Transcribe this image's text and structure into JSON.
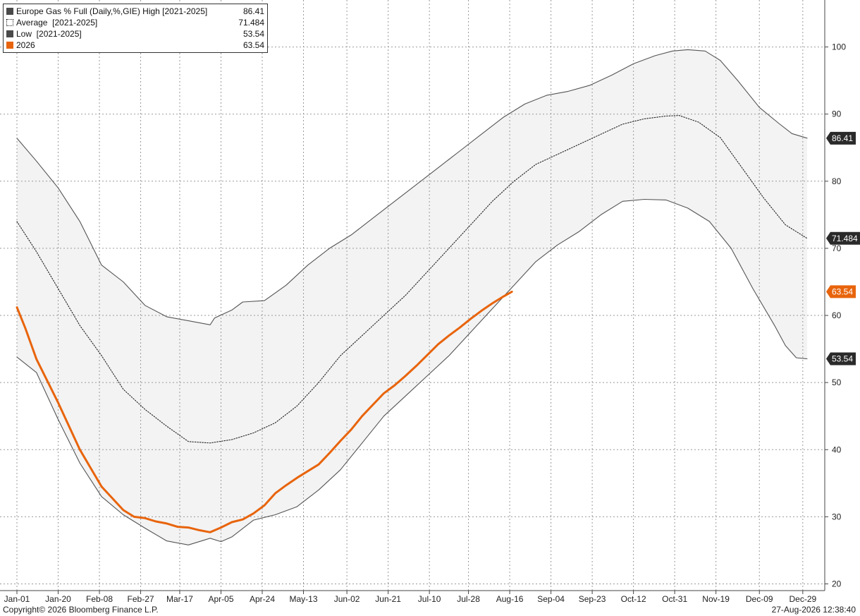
{
  "chart_data": {
    "type": "line",
    "legend_position": "top-left",
    "grid": true,
    "x_range": [
      1,
      365
    ],
    "ylim": [
      19,
      107
    ],
    "x_tick_labels": [
      {
        "day": 1,
        "label": "Jan-01"
      },
      {
        "day": 20,
        "label": "Jan-20"
      },
      {
        "day": 39,
        "label": "Feb-08"
      },
      {
        "day": 58,
        "label": "Feb-27"
      },
      {
        "day": 76,
        "label": "Mar-17"
      },
      {
        "day": 95,
        "label": "Apr-05"
      },
      {
        "day": 114,
        "label": "Apr-24"
      },
      {
        "day": 133,
        "label": "May-13"
      },
      {
        "day": 153,
        "label": "Jun-02"
      },
      {
        "day": 172,
        "label": "Jun-21"
      },
      {
        "day": 191,
        "label": "Jul-10"
      },
      {
        "day": 209,
        "label": "Jul-28"
      },
      {
        "day": 228,
        "label": "Aug-16"
      },
      {
        "day": 247,
        "label": "Sep-04"
      },
      {
        "day": 266,
        "label": "Sep-23"
      },
      {
        "day": 285,
        "label": "Oct-12"
      },
      {
        "day": 304,
        "label": "Oct-31"
      },
      {
        "day": 323,
        "label": "Nov-19"
      },
      {
        "day": 343,
        "label": "Dec-09"
      },
      {
        "day": 363,
        "label": "Dec-29"
      }
    ],
    "y_ticks": [
      20,
      30,
      40,
      50,
      60,
      70,
      80,
      90,
      100
    ],
    "series": [
      {
        "key": "high",
        "name": "Europe Gas % Full (Daily,%,GIE) High [2021-2025]",
        "last_value": "86.41",
        "color": "#555555",
        "style": "solid",
        "points": [
          [
            1,
            86.4
          ],
          [
            10,
            83
          ],
          [
            20,
            79
          ],
          [
            30,
            74
          ],
          [
            40,
            67.5
          ],
          [
            50,
            65
          ],
          [
            60,
            61.5
          ],
          [
            70,
            59.8
          ],
          [
            80,
            59.2
          ],
          [
            90,
            58.6
          ],
          [
            92,
            59.6
          ],
          [
            100,
            60.8
          ],
          [
            105,
            62
          ],
          [
            115,
            62.2
          ],
          [
            125,
            64.5
          ],
          [
            135,
            67.5
          ],
          [
            145,
            70
          ],
          [
            155,
            72
          ],
          [
            165,
            74.5
          ],
          [
            175,
            77
          ],
          [
            185,
            79.5
          ],
          [
            195,
            82
          ],
          [
            205,
            84.5
          ],
          [
            215,
            87
          ],
          [
            225,
            89.5
          ],
          [
            235,
            91.5
          ],
          [
            245,
            92.8
          ],
          [
            255,
            93.4
          ],
          [
            265,
            94.3
          ],
          [
            275,
            95.8
          ],
          [
            285,
            97.5
          ],
          [
            295,
            98.7
          ],
          [
            303,
            99.4
          ],
          [
            310,
            99.6
          ],
          [
            318,
            99.4
          ],
          [
            325,
            98
          ],
          [
            333,
            95
          ],
          [
            343,
            91
          ],
          [
            352,
            88.6
          ],
          [
            358,
            87.1
          ],
          [
            365,
            86.41
          ]
        ]
      },
      {
        "key": "average",
        "name": "Average  [2021-2025]",
        "last_value": "71.484",
        "color": "#222222",
        "style": "dotted",
        "points": [
          [
            1,
            74
          ],
          [
            10,
            69.5
          ],
          [
            20,
            64
          ],
          [
            30,
            58.5
          ],
          [
            40,
            54
          ],
          [
            50,
            49
          ],
          [
            60,
            46
          ],
          [
            70,
            43.5
          ],
          [
            80,
            41.2
          ],
          [
            90,
            41
          ],
          [
            100,
            41.5
          ],
          [
            110,
            42.5
          ],
          [
            120,
            44
          ],
          [
            130,
            46.5
          ],
          [
            140,
            50
          ],
          [
            150,
            54
          ],
          [
            160,
            57
          ],
          [
            170,
            60
          ],
          [
            180,
            63
          ],
          [
            190,
            66.5
          ],
          [
            200,
            70
          ],
          [
            210,
            73.5
          ],
          [
            220,
            77
          ],
          [
            230,
            80
          ],
          [
            240,
            82.5
          ],
          [
            250,
            84
          ],
          [
            260,
            85.5
          ],
          [
            270,
            87
          ],
          [
            280,
            88.5
          ],
          [
            290,
            89.3
          ],
          [
            300,
            89.7
          ],
          [
            306,
            89.8
          ],
          [
            315,
            88.8
          ],
          [
            325,
            86.5
          ],
          [
            335,
            82
          ],
          [
            345,
            77.5
          ],
          [
            355,
            73.5
          ],
          [
            365,
            71.484
          ]
        ]
      },
      {
        "key": "low",
        "name": "Low  [2021-2025]",
        "last_value": "53.54",
        "color": "#555555",
        "style": "solid",
        "points": [
          [
            1,
            53.8
          ],
          [
            10,
            51.5
          ],
          [
            20,
            44.5
          ],
          [
            30,
            38
          ],
          [
            40,
            33
          ],
          [
            50,
            30.3
          ],
          [
            60,
            28.3
          ],
          [
            70,
            26.4
          ],
          [
            80,
            25.8
          ],
          [
            90,
            26.8
          ],
          [
            95,
            26.3
          ],
          [
            100,
            27
          ],
          [
            110,
            29.5
          ],
          [
            120,
            30.3
          ],
          [
            130,
            31.5
          ],
          [
            140,
            34
          ],
          [
            150,
            37
          ],
          [
            160,
            41
          ],
          [
            170,
            45
          ],
          [
            180,
            48
          ],
          [
            190,
            51
          ],
          [
            200,
            54
          ],
          [
            210,
            57.5
          ],
          [
            220,
            61
          ],
          [
            230,
            64.5
          ],
          [
            240,
            68
          ],
          [
            250,
            70.5
          ],
          [
            260,
            72.5
          ],
          [
            270,
            75
          ],
          [
            280,
            77
          ],
          [
            290,
            77.3
          ],
          [
            300,
            77.2
          ],
          [
            310,
            76
          ],
          [
            320,
            74
          ],
          [
            330,
            70
          ],
          [
            340,
            64
          ],
          [
            350,
            58.5
          ],
          [
            355,
            55.5
          ],
          [
            360,
            53.7
          ],
          [
            365,
            53.54
          ]
        ]
      },
      {
        "key": "s2026",
        "name": "2026",
        "last_value": "63.54",
        "color": "#e8640c",
        "style": "solid",
        "points": [
          [
            1,
            61.2
          ],
          [
            5,
            58
          ],
          [
            10,
            53.5
          ],
          [
            20,
            47
          ],
          [
            30,
            40
          ],
          [
            40,
            34.5
          ],
          [
            50,
            31
          ],
          [
            55,
            30
          ],
          [
            60,
            29.8
          ],
          [
            65,
            29.3
          ],
          [
            70,
            29
          ],
          [
            75,
            28.5
          ],
          [
            80,
            28.4
          ],
          [
            85,
            28
          ],
          [
            90,
            27.7
          ],
          [
            95,
            28.4
          ],
          [
            100,
            29.2
          ],
          [
            105,
            29.6
          ],
          [
            110,
            30.5
          ],
          [
            115,
            31.7
          ],
          [
            120,
            33.5
          ],
          [
            125,
            34.7
          ],
          [
            130,
            35.8
          ],
          [
            135,
            36.8
          ],
          [
            140,
            37.8
          ],
          [
            145,
            39.5
          ],
          [
            150,
            41.3
          ],
          [
            155,
            43
          ],
          [
            160,
            45
          ],
          [
            165,
            46.7
          ],
          [
            170,
            48.4
          ],
          [
            175,
            49.6
          ],
          [
            180,
            51
          ],
          [
            185,
            52.5
          ],
          [
            190,
            54.1
          ],
          [
            195,
            55.7
          ],
          [
            200,
            57
          ],
          [
            205,
            58.2
          ],
          [
            210,
            59.5
          ],
          [
            215,
            60.7
          ],
          [
            220,
            61.8
          ],
          [
            225,
            62.8
          ],
          [
            229,
            63.54
          ]
        ]
      }
    ]
  },
  "footer": {
    "copyright": "Copyright© 2026 Bloomberg Finance L.P.",
    "timestamp": "27-Aug-2026 12:38:40"
  }
}
